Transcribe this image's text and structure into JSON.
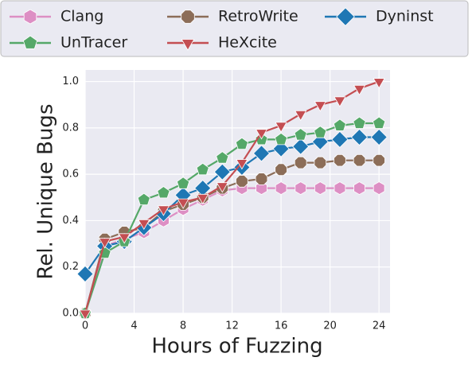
{
  "chart_data": {
    "type": "line",
    "xlabel": "Hours of Fuzzing",
    "ylabel": "Rel. Unique Bugs",
    "x": [
      0,
      1.6,
      3.2,
      4.8,
      6.4,
      8,
      9.6,
      11.2,
      12.8,
      14.4,
      16,
      17.6,
      19.2,
      20.8,
      22.4,
      24
    ],
    "series": [
      {
        "name": "Clang",
        "color": "#dd8fc4",
        "marker": "hexagon",
        "values": [
          0,
          0.29,
          0.32,
          0.35,
          0.4,
          0.45,
          0.49,
          0.53,
          0.54,
          0.54,
          0.54,
          0.54,
          0.54,
          0.54,
          0.54,
          0.54
        ]
      },
      {
        "name": "RetroWrite",
        "color": "#8c6d58",
        "marker": "octagon",
        "values": [
          0,
          0.32,
          0.35,
          0.37,
          0.44,
          0.47,
          0.5,
          0.54,
          0.57,
          0.58,
          0.62,
          0.65,
          0.65,
          0.66,
          0.66,
          0.66
        ]
      },
      {
        "name": "Dyninst",
        "color": "#1f77b4",
        "marker": "diamond",
        "values": [
          0.17,
          0.29,
          0.31,
          0.37,
          0.43,
          0.51,
          0.54,
          0.61,
          0.63,
          0.69,
          0.71,
          0.72,
          0.74,
          0.75,
          0.76,
          0.76
        ]
      },
      {
        "name": "UnTracer",
        "color": "#55a868",
        "marker": "pentagon",
        "values": [
          0,
          0.26,
          0.31,
          0.49,
          0.52,
          0.56,
          0.62,
          0.67,
          0.73,
          0.75,
          0.75,
          0.77,
          0.78,
          0.81,
          0.82,
          0.82
        ]
      },
      {
        "name": "HeXcite",
        "color": "#c44e52",
        "marker": "triangle-down",
        "values": [
          0,
          0.31,
          0.33,
          0.39,
          0.45,
          0.48,
          0.5,
          0.55,
          0.65,
          0.78,
          0.81,
          0.86,
          0.9,
          0.92,
          0.97,
          1.0
        ]
      }
    ],
    "xlim": [
      0,
      24.9
    ],
    "ylim": [
      0,
      1.05
    ],
    "xticks": [
      0,
      4,
      8,
      12,
      16,
      20,
      24
    ],
    "yticks": [
      {
        "value": 0,
        "label": "0.0"
      },
      {
        "value": 0.2,
        "label": "0.2"
      },
      {
        "value": 0.4,
        "label": "0.4"
      },
      {
        "value": 0.6,
        "label": "0.6"
      },
      {
        "value": 0.8,
        "label": "0.8"
      },
      {
        "value": 1.0,
        "label": "1.0"
      }
    ],
    "grid": true
  }
}
